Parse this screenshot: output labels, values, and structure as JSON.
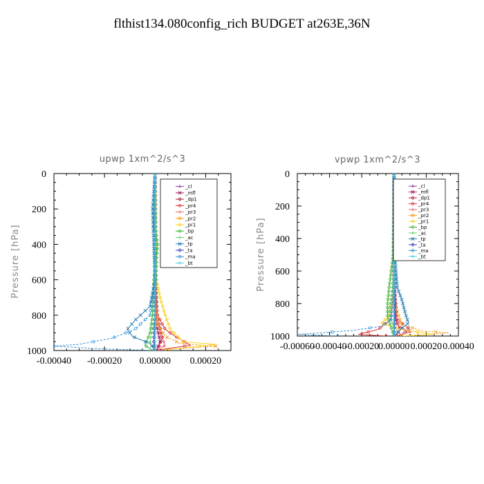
{
  "figure": {
    "title": "flthist134.080config_rich  BUDGET at263E,36N"
  },
  "chart_data": [
    {
      "type": "line",
      "title": "upwp   1xm^2/s^3",
      "xlabel": "",
      "ylabel": "Pressure [hPa]",
      "xlim": [
        -0.0004,
        0.0003
      ],
      "ylim": [
        1000,
        0
      ],
      "y_inverted": true,
      "xticks": [
        -0.0004,
        -0.0002,
        0.0,
        0.0002
      ],
      "xtick_labels": [
        "-0.00040",
        "-0.00020",
        "0.00000",
        "0.00020"
      ],
      "yticks": [
        0,
        200,
        400,
        600,
        800,
        1000
      ],
      "ytick_labels": [
        "0",
        "200",
        "400",
        "600",
        "800",
        "1000"
      ],
      "legend_position": "top-right",
      "grid": false,
      "series": [
        {
          "name": "_cl",
          "color": "#8b3a9a",
          "points": [
            [
              0.0,
              0
            ],
            [
              0.0,
              400
            ],
            [
              0.0,
              800
            ],
            [
              0.0,
              950
            ],
            [
              0.0,
              1000
            ]
          ]
        },
        {
          "name": "_mfl",
          "color": "#a0205f",
          "points": [
            [
              0.0,
              0
            ],
            [
              0.0,
              500
            ],
            [
              5e-06,
              850
            ],
            [
              2e-05,
              950
            ],
            [
              5e-06,
              1000
            ]
          ]
        },
        {
          "name": "_dp1",
          "color": "#b0203a",
          "points": [
            [
              0.0,
              0
            ],
            [
              0.0,
              600
            ],
            [
              5e-06,
              800
            ],
            [
              3e-05,
              920
            ],
            [
              1e-05,
              1000
            ]
          ]
        },
        {
          "name": "_pr4",
          "color": "#e02828",
          "points": [
            [
              0.0,
              0
            ],
            [
              0.0,
              600
            ],
            [
              1e-05,
              800
            ],
            [
              4e-05,
              880
            ],
            [
              8e-05,
              920
            ],
            [
              0.00014,
              970
            ],
            [
              2e-05,
              995
            ]
          ]
        },
        {
          "name": "_pr3",
          "color": "#f06060",
          "points": [
            [
              0.0,
              0
            ],
            [
              0.0,
              700
            ],
            [
              5e-06,
              800
            ],
            [
              2e-05,
              900
            ],
            [
              4e-05,
              970
            ],
            [
              1e-05,
              1000
            ]
          ]
        },
        {
          "name": "_pr2",
          "color": "#f8a020",
          "points": [
            [
              0.0,
              0
            ],
            [
              0.0,
              700
            ],
            [
              1e-05,
              850
            ],
            [
              4e-05,
              920
            ],
            [
              0.0001,
              960
            ],
            [
              0.00024,
              975
            ],
            [
              4e-05,
              995
            ]
          ]
        },
        {
          "name": "_pr1",
          "color": "#f8d020",
          "points": [
            [
              0.0,
              0
            ],
            [
              5e-06,
              600
            ],
            [
              2e-05,
              700
            ],
            [
              4e-05,
              800
            ],
            [
              6e-05,
              880
            ],
            [
              0.00011,
              950
            ],
            [
              0.00024,
              965
            ],
            [
              5e-05,
              995
            ]
          ]
        },
        {
          "name": "_bp",
          "color": "#3ab030",
          "points": [
            [
              0.0,
              0
            ],
            [
              -5e-06,
              300
            ],
            [
              1e-05,
              400
            ],
            [
              -5e-06,
              600
            ],
            [
              -1e-05,
              800
            ],
            [
              -2e-05,
              900
            ],
            [
              -4e-05,
              970
            ],
            [
              -1e-05,
              1000
            ]
          ]
        },
        {
          "name": "_ac",
          "color": "#60d060",
          "points": [
            [
              0.0,
              0
            ],
            [
              5e-06,
              300
            ],
            [
              1e-05,
              400
            ],
            [
              5e-06,
              600
            ],
            [
              0.0,
              800
            ],
            [
              -2e-05,
              950
            ],
            [
              0.0,
              1000
            ]
          ]
        },
        {
          "name": "_tp",
          "color": "#2a7fb0",
          "points": [
            [
              0.0,
              0
            ],
            [
              -1e-05,
              200
            ],
            [
              -5e-06,
              400
            ],
            [
              0.0,
              600
            ],
            [
              -2e-05,
              750
            ],
            [
              -8e-05,
              830
            ],
            [
              -0.00011,
              880
            ],
            [
              -9e-05,
              920
            ],
            [
              -2e-05,
              960
            ],
            [
              0.0,
              1000
            ]
          ]
        },
        {
          "name": "_ta",
          "color": "#4040c0",
          "points": [
            [
              0.0,
              0
            ],
            [
              0.0,
              500
            ],
            [
              0.0,
              800
            ],
            [
              -5e-06,
              950
            ],
            [
              0.0,
              1000
            ]
          ]
        },
        {
          "name": "_ma",
          "color": "#3090d0",
          "points": [
            [
              0.0,
              0
            ],
            [
              0.0,
              600
            ],
            [
              -2e-05,
              800
            ],
            [
              -8e-05,
              880
            ],
            [
              -0.00017,
              930
            ],
            [
              -0.0003,
              965
            ],
            [
              -0.0004,
              975
            ],
            [
              -0.00022,
              990
            ],
            [
              0.0,
              1000
            ]
          ]
        },
        {
          "name": "_bt",
          "color": "#40d0e0",
          "points": [
            [
              0.0,
              0
            ],
            [
              0.0,
              500
            ],
            [
              0.0,
              1000
            ]
          ]
        }
      ]
    },
    {
      "type": "line",
      "title": "vpwp   1xm^2/s^3",
      "xlabel": "",
      "ylabel": "Pressure [hPa]",
      "xlim": [
        -0.0006,
        0.0004
      ],
      "ylim": [
        1000,
        0
      ],
      "y_inverted": true,
      "xticks": [
        -0.0006,
        -0.0004,
        -0.0002,
        0.0,
        0.0002,
        0.0004
      ],
      "xtick_labels": [
        "-0.00060",
        "-0.00040",
        "-0.00020",
        "0.00000",
        "0.00020",
        "0.00040"
      ],
      "yticks": [
        0,
        200,
        400,
        600,
        800,
        1000
      ],
      "ytick_labels": [
        "0",
        "200",
        "400",
        "600",
        "800",
        "1000"
      ],
      "legend_position": "top-right",
      "grid": false,
      "series": [
        {
          "name": "_cl",
          "color": "#8b3a9a",
          "points": [
            [
              0.0,
              0
            ],
            [
              0.0,
              500
            ],
            [
              0.0,
              1000
            ]
          ]
        },
        {
          "name": "_mfl",
          "color": "#a0205f",
          "points": [
            [
              0.0,
              0
            ],
            [
              0.0,
              600
            ],
            [
              1e-05,
              900
            ],
            [
              4e-05,
              960
            ],
            [
              1e-05,
              1000
            ]
          ]
        },
        {
          "name": "_dp1",
          "color": "#b0203a",
          "points": [
            [
              0.0,
              0
            ],
            [
              0.0,
              700
            ],
            [
              2e-05,
              900
            ],
            [
              0.0001,
              960
            ],
            [
              2e-05,
              1000
            ]
          ]
        },
        {
          "name": "_pr4",
          "color": "#e02828",
          "points": [
            [
              0.0,
              0
            ],
            [
              0.0,
              700
            ],
            [
              -2e-05,
              900
            ],
            [
              -0.0001,
              960
            ],
            [
              -0.00022,
              990
            ],
            [
              -5e-05,
              1000
            ]
          ]
        },
        {
          "name": "_pr3",
          "color": "#f06060",
          "points": [
            [
              0.0,
              0
            ],
            [
              0.0,
              800
            ],
            [
              3e-05,
              940
            ],
            [
              0.0001,
              975
            ],
            [
              2e-05,
              1000
            ]
          ]
        },
        {
          "name": "_pr2",
          "color": "#f8a020",
          "points": [
            [
              0.0,
              0
            ],
            [
              0.0,
              800
            ],
            [
              5e-05,
              930
            ],
            [
              0.00018,
              970
            ],
            [
              0.00034,
              980
            ],
            [
              0.0001,
              1000
            ]
          ]
        },
        {
          "name": "_pr1",
          "color": "#f8d020",
          "points": [
            [
              0.0,
              0
            ],
            [
              0.0,
              700
            ],
            [
              -3e-05,
              880
            ],
            [
              -8e-05,
              920
            ],
            [
              5e-05,
              960
            ],
            [
              0.00024,
              990
            ],
            [
              5e-05,
              1000
            ]
          ]
        },
        {
          "name": "_bp",
          "color": "#3ab030",
          "points": [
            [
              0.0,
              0
            ],
            [
              -5e-06,
              500
            ],
            [
              -3e-05,
              700
            ],
            [
              -4e-05,
              800
            ],
            [
              -4e-05,
              880
            ],
            [
              -2e-05,
              940
            ],
            [
              0.0,
              1000
            ]
          ]
        },
        {
          "name": "_ac",
          "color": "#60d060",
          "points": [
            [
              0.0,
              0
            ],
            [
              5e-06,
              500
            ],
            [
              -1e-05,
              700
            ],
            [
              -3e-05,
              850
            ],
            [
              0.0,
              950
            ],
            [
              1e-05,
              1000
            ]
          ]
        },
        {
          "name": "_tp",
          "color": "#2a7fb0",
          "points": [
            [
              0.0,
              0
            ],
            [
              5e-06,
              500
            ],
            [
              2e-05,
              700
            ],
            [
              5e-05,
              780
            ],
            [
              7e-05,
              860
            ],
            [
              9e-05,
              920
            ],
            [
              4e-05,
              960
            ],
            [
              0.0,
              1000
            ]
          ]
        },
        {
          "name": "_ta",
          "color": "#4040c0",
          "points": [
            [
              0.0,
              0
            ],
            [
              0.0,
              600
            ],
            [
              5e-06,
              900
            ],
            [
              0.0,
              1000
            ]
          ]
        },
        {
          "name": "_ma",
          "color": "#3090d0",
          "points": [
            [
              0.0,
              0
            ],
            [
              0.0,
              700
            ],
            [
              -2e-05,
              900
            ],
            [
              -8e-05,
              940
            ],
            [
              -0.00025,
              965
            ],
            [
              -0.00045,
              980
            ],
            [
              -0.0006,
              990
            ],
            [
              -0.00035,
              1000
            ]
          ]
        },
        {
          "name": "_bt",
          "color": "#40d0e0",
          "points": [
            [
              0.0,
              0
            ],
            [
              0.0,
              500
            ],
            [
              0.0,
              1000
            ]
          ]
        }
      ]
    }
  ]
}
